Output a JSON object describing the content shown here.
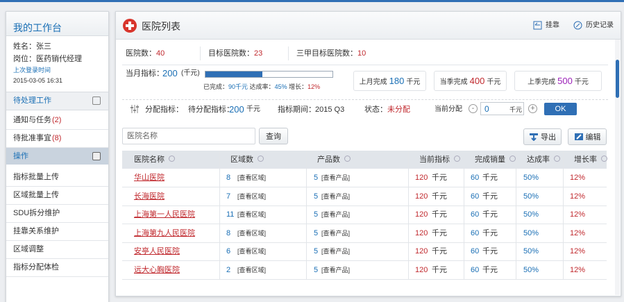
{
  "sidebar": {
    "title": "我的工作台",
    "name": "姓名：张三",
    "role": "岗位：医药销代经理",
    "last_login_label": "上次登录时间",
    "last_login": "2015-03-05 16:31",
    "pending_title": "待处理工作",
    "pending": [
      {
        "label": "通知与任务",
        "count": "(2)"
      },
      {
        "label": "待批准事宜",
        "count": "(8)"
      }
    ],
    "ops_title": "操作",
    "ops": [
      "指标批量上传",
      "区域批量上传",
      "SDU拆分维护",
      "挂靠关系维护",
      "区域调整",
      "指标分配体检"
    ]
  },
  "header": {
    "title": "医院列表",
    "actions": [
      "挂靠",
      "历史记录"
    ]
  },
  "stats": [
    {
      "label": "医院数：",
      "value": "40"
    },
    {
      "label": "目标医院数：",
      "value": "23"
    },
    {
      "label": "三甲目标医院数：",
      "value": "10"
    }
  ],
  "target": {
    "label": "当月指标：",
    "value": "200",
    "unit": "(千元)",
    "progress": {
      "value": 45,
      "label": "45%"
    },
    "done_label": "已完成：",
    "done": "90千元",
    "rate_label": "达成率：",
    "growth_label": "增长：",
    "growth": "12%"
  },
  "cards": [
    {
      "label": "上月完成",
      "value": "180",
      "unit": "千元",
      "color": "#1a6fb5"
    },
    {
      "label": "当季完成",
      "value": "400",
      "unit": "千元",
      "color": "#c0282d"
    },
    {
      "label": "上季完成",
      "value": "500",
      "unit": "千元",
      "color": "#9b1fb8"
    }
  ],
  "allocation": {
    "label": "分配指标：",
    "pending_label": "待分配指标：",
    "pending": "200",
    "pending_unit": "千元",
    "period_label": "指标期间：",
    "period": "2015 Q3",
    "status_label": "状态：",
    "status": "未分配",
    "current_label": "当前分配",
    "current": "0",
    "current_unit": "千元",
    "ok": "OK"
  },
  "toolbar": {
    "search_placeholder": "医院名称",
    "search": "查询",
    "export": "导出",
    "edit": "编辑"
  },
  "table": {
    "columns": [
      "医院名称",
      "区域数",
      "产品数",
      "当前指标",
      "完成销量",
      "达成率",
      "增长率"
    ],
    "rows": [
      [
        "华山医院",
        "8",
        "[查看区域]",
        "5",
        "[查看产品]",
        "120",
        "千元",
        "60",
        "千元",
        "50%",
        "12%"
      ],
      [
        "长海医院",
        "7",
        "[查看区域]",
        "5",
        "[查看产品]",
        "120",
        "千元",
        "60",
        "千元",
        "50%",
        "12%"
      ],
      [
        "上海第一人民医院",
        "11",
        "[查看区域]",
        "5",
        "[查看产品]",
        "120",
        "千元",
        "60",
        "千元",
        "50%",
        "12%"
      ],
      [
        "上海第九人民医院",
        "8",
        "[查看区域]",
        "5",
        "[查看产品]",
        "120",
        "千元",
        "60",
        "千元",
        "50%",
        "12%"
      ],
      [
        "安亭人民医院",
        "6",
        "[查看区域]",
        "5",
        "[查看产品]",
        "120",
        "千元",
        "60",
        "千元",
        "50%",
        "12%"
      ],
      [
        "远大心胸医院",
        "2",
        "[查看区域]",
        "5",
        "[查看产品]",
        "120",
        "千元",
        "60",
        "千元",
        "50%",
        "12%"
      ]
    ]
  }
}
